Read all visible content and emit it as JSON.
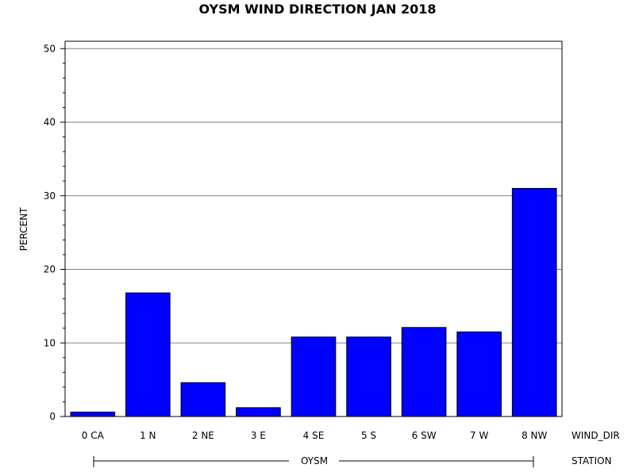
{
  "chart_data": {
    "type": "bar",
    "title": "OYSM WIND DIRECTION JAN 2018",
    "ylabel": "PERCENT",
    "xlabel": "WIND_DIR",
    "group_label": "STATION",
    "group_value": "OYSM",
    "categories": [
      "0 CA",
      "1 N",
      "2 NE",
      "3 E",
      "4 SE",
      "5 S",
      "6 SW",
      "7 W",
      "8 NW"
    ],
    "values": [
      0.6,
      16.8,
      4.6,
      1.2,
      10.8,
      10.8,
      12.1,
      11.5,
      31.0
    ],
    "ylim": [
      0,
      51
    ],
    "yticks": [
      0,
      10,
      20,
      30,
      40,
      50
    ],
    "grid": true,
    "bar_color": "#0000ff",
    "bar_edge_color": "#000000"
  }
}
